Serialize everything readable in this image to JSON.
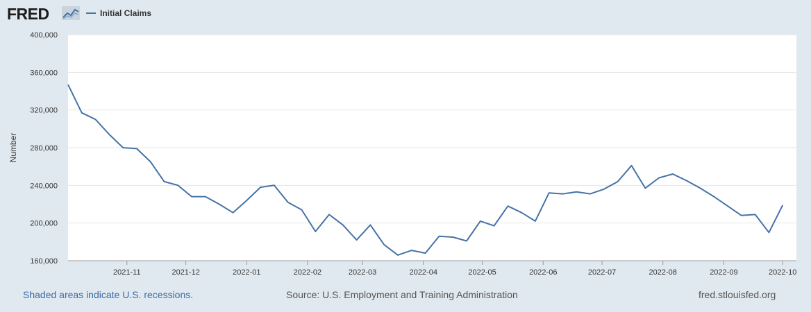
{
  "header": {
    "logo_text": "FRED",
    "logo_icon": "fred-chart-logo-icon"
  },
  "chart_data": {
    "type": "line",
    "title": "",
    "xlabel": "",
    "ylabel": "Number",
    "ylim": [
      160000,
      400000
    ],
    "xlim": [
      "2021-10-02",
      "2022-10-08"
    ],
    "yticks": [
      160000,
      200000,
      240000,
      280000,
      320000,
      360000,
      400000
    ],
    "ytick_labels": [
      "160,000",
      "200,000",
      "240,000",
      "280,000",
      "320,000",
      "360,000",
      "400,000"
    ],
    "xticks": [
      "2021-11-01",
      "2021-12-01",
      "2022-01-01",
      "2022-02-01",
      "2022-03-01",
      "2022-04-01",
      "2022-05-01",
      "2022-06-01",
      "2022-07-01",
      "2022-08-01",
      "2022-09-01",
      "2022-10-01"
    ],
    "xtick_labels": [
      "2021-11",
      "2021-12",
      "2022-01",
      "2022-02",
      "2022-03",
      "2022-04",
      "2022-05",
      "2022-06",
      "2022-07",
      "2022-08",
      "2022-09",
      "2022-10"
    ],
    "grid": true,
    "legend": "top-left",
    "line_color": "#4572a7",
    "series": [
      {
        "name": "Initial Claims",
        "x": [
          "2021-10-02",
          "2021-10-09",
          "2021-10-16",
          "2021-10-23",
          "2021-10-30",
          "2021-11-06",
          "2021-11-13",
          "2021-11-20",
          "2021-11-27",
          "2021-12-04",
          "2021-12-11",
          "2021-12-18",
          "2021-12-25",
          "2022-01-01",
          "2022-01-08",
          "2022-01-15",
          "2022-01-22",
          "2022-01-29",
          "2022-02-05",
          "2022-02-12",
          "2022-02-19",
          "2022-02-26",
          "2022-03-05",
          "2022-03-12",
          "2022-03-19",
          "2022-03-26",
          "2022-04-02",
          "2022-04-09",
          "2022-04-16",
          "2022-04-23",
          "2022-04-30",
          "2022-05-07",
          "2022-05-14",
          "2022-05-21",
          "2022-05-28",
          "2022-06-04",
          "2022-06-11",
          "2022-06-18",
          "2022-06-25",
          "2022-07-02",
          "2022-07-09",
          "2022-07-16",
          "2022-07-23",
          "2022-07-30",
          "2022-08-06",
          "2022-08-13",
          "2022-08-20",
          "2022-08-27",
          "2022-09-03",
          "2022-09-10",
          "2022-09-17",
          "2022-09-24",
          "2022-10-01"
        ],
        "values": [
          347000,
          317000,
          310000,
          294000,
          280000,
          279000,
          265000,
          244000,
          240000,
          228000,
          228000,
          220000,
          211000,
          224000,
          238000,
          240000,
          222000,
          214000,
          191000,
          209000,
          198000,
          182000,
          198000,
          177000,
          166000,
          171000,
          168000,
          186000,
          185000,
          181000,
          202000,
          197000,
          218000,
          211000,
          202000,
          232000,
          231000,
          233000,
          231000,
          236000,
          244000,
          261000,
          237000,
          248000,
          252000,
          245000,
          237000,
          228000,
          218000,
          208000,
          209000,
          190000,
          219000
        ]
      }
    ]
  },
  "footer": {
    "recession_note": "Shaded areas indicate U.S. recessions.",
    "source": "Source: U.S. Employment and Training Administration",
    "site": "fred.stlouisfed.org"
  }
}
